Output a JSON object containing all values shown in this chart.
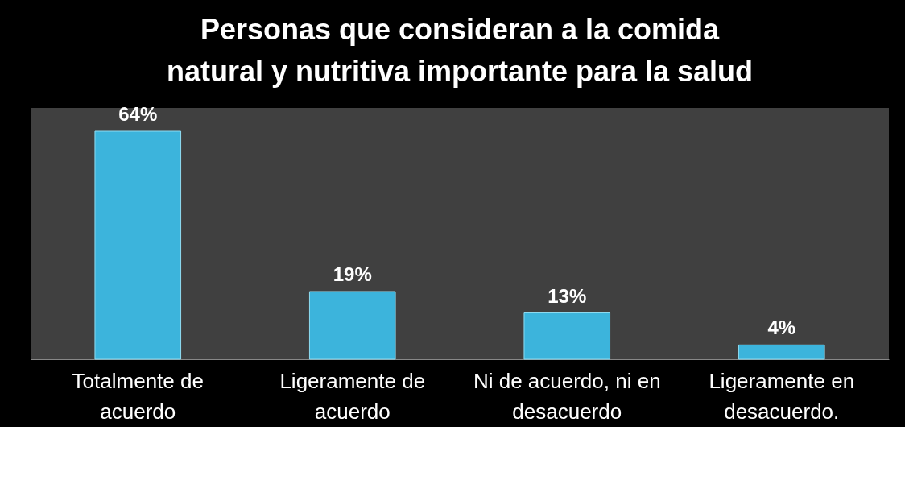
{
  "chart_data": {
    "type": "bar",
    "title": "Personas que consideran a la comida natural y nutritiva importante para la salud",
    "categories": [
      "Totalmente de acuerdo",
      "Ligeramente de acuerdo",
      "Ni de acuerdo, ni en desacuerdo",
      "Ligeramente en desacuerdo."
    ],
    "values": [
      64,
      19,
      13,
      4
    ],
    "value_labels": [
      "64%",
      "19%",
      "13%",
      "4%"
    ],
    "color": "#3cb4dc",
    "grid": false
  }
}
